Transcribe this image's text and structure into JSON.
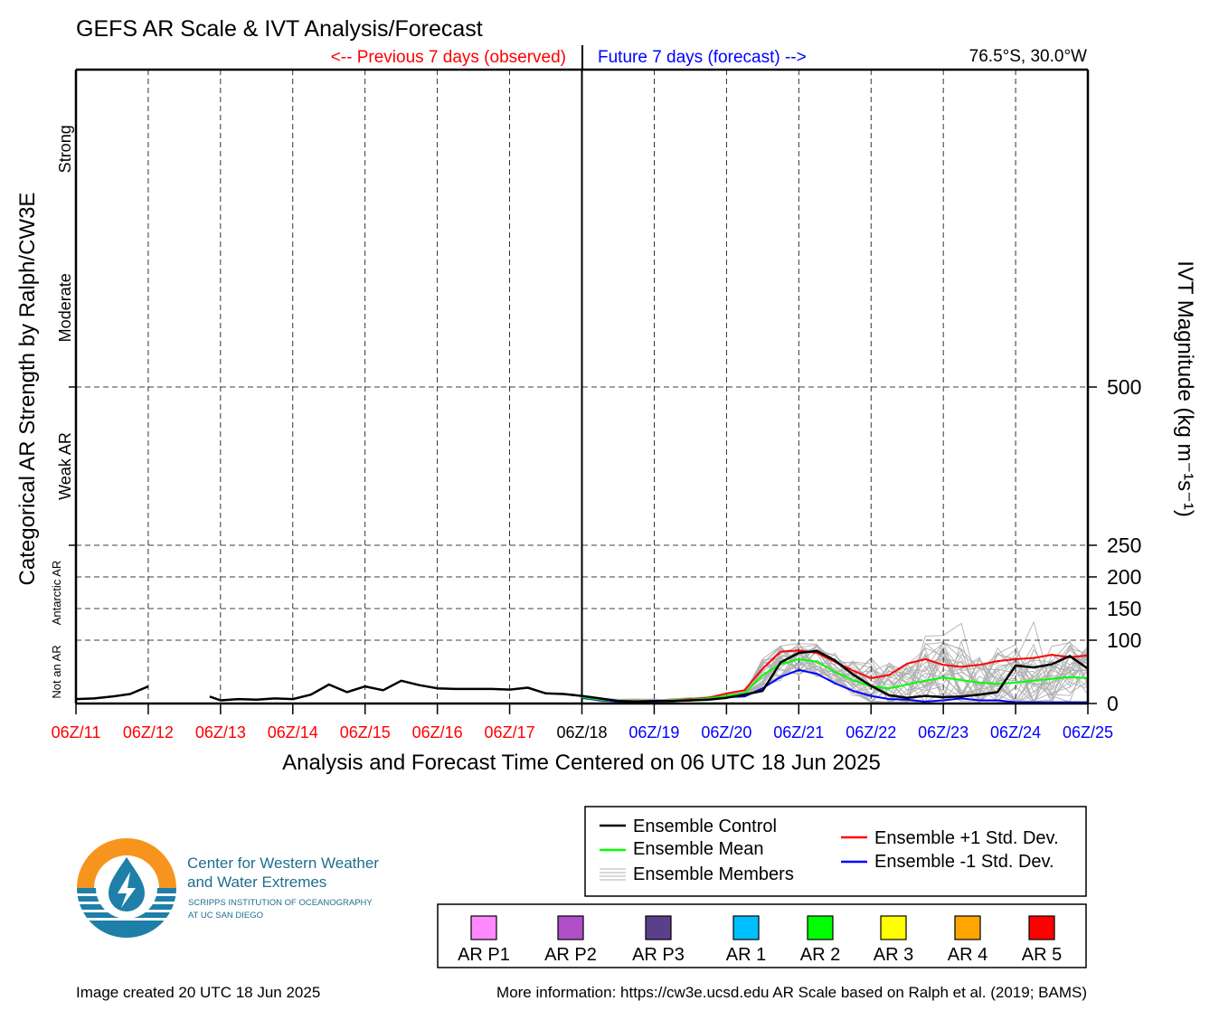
{
  "chart_data": {
    "type": "line",
    "title": "GEFS AR Scale & IVT Analysis/Forecast",
    "previous_label": "<-- Previous 7 days (observed)",
    "future_label": "Future 7 days (forecast) -->",
    "location": "76.5°S, 30.0°W",
    "xlabel": "Analysis and Forecast Time Centered on 06 UTC 18 Jun 2025",
    "ylabel_left": "Categorical AR Strength by Ralph/CW3E",
    "ylabel_right": "IVT Magnitude (kg m⁻¹s⁻¹)",
    "x_ticks": [
      "06Z/11",
      "06Z/12",
      "06Z/13",
      "06Z/14",
      "06Z/15",
      "06Z/16",
      "06Z/17",
      "06Z/18",
      "06Z/19",
      "06Z/20",
      "06Z/21",
      "06Z/22",
      "06Z/23",
      "06Z/24",
      "06Z/25"
    ],
    "x_tick_colors": [
      "#ff0000",
      "#ff0000",
      "#ff0000",
      "#ff0000",
      "#ff0000",
      "#ff0000",
      "#ff0000",
      "#000000",
      "#0000ff",
      "#0000ff",
      "#0000ff",
      "#0000ff",
      "#0000ff",
      "#0000ff",
      "#0000ff"
    ],
    "x_range_days": [
      0,
      14
    ],
    "center_day": 7,
    "y_ticks": [
      0,
      100,
      150,
      200,
      250,
      500
    ],
    "y_axis_max": 1000,
    "y_scale_note": "piecewise: 0-250 compressed lower band, 250-500, 500-1000",
    "categories": [
      {
        "label": "Not an AR",
        "from": 0,
        "to": 100,
        "small": true
      },
      {
        "label": "Antarctic AR",
        "from": 100,
        "to": 250,
        "small": true
      },
      {
        "label": "Weak AR",
        "from": 250,
        "to": 500
      },
      {
        "label": "Moderate",
        "from": 500,
        "to": 750
      },
      {
        "label": "Strong",
        "from": 750,
        "to": 1000
      }
    ],
    "grid": true,
    "series": [
      {
        "name": "Ensemble Control",
        "color": "#000000",
        "segments": [
          {
            "x": [
              0,
              0.25,
              0.5,
              0.75,
              1
            ],
            "y": [
              7,
              8,
              11,
              15,
              27
            ]
          },
          {
            "x": [
              1.85,
              2,
              2.25,
              2.5,
              2.75,
              3,
              3.25,
              3.5,
              3.75,
              4,
              4.25,
              4.5,
              4.75,
              5,
              5.25,
              5.5,
              5.75,
              6,
              6.25,
              6.5,
              6.75,
              7,
              7.25,
              7.5,
              7.75,
              8,
              8.25,
              8.5,
              8.75,
              9,
              9.25,
              9.5,
              9.75,
              10,
              10.25,
              10.5,
              10.75,
              11,
              11.25,
              11.5,
              11.75,
              12,
              12.25,
              12.5,
              12.75,
              13,
              13.25,
              13.5,
              13.75,
              14
            ],
            "y": [
              11,
              5,
              7,
              6,
              8,
              7,
              14,
              30,
              18,
              27,
              21,
              36,
              29,
              24,
              23,
              23,
              23,
              22,
              25,
              16,
              15,
              12,
              8,
              4,
              3,
              4,
              4,
              5,
              6,
              9,
              14,
              20,
              65,
              80,
              83,
              68,
              46,
              28,
              13,
              9,
              12,
              10,
              11,
              14,
              18,
              60,
              57,
              62,
              75,
              55
            ]
          }
        ]
      },
      {
        "name": "Ensemble Mean",
        "color": "#00ff00",
        "x": [
          7,
          7.25,
          7.5,
          7.75,
          8,
          8.25,
          8.5,
          8.75,
          9,
          9.25,
          9.5,
          9.75,
          10,
          10.25,
          10.5,
          10.75,
          11,
          11.25,
          11.5,
          11.75,
          12,
          12.25,
          12.5,
          12.75,
          13,
          13.25,
          13.5,
          13.75,
          14
        ],
        "y": [
          10,
          6,
          4,
          4,
          4,
          5,
          6,
          8,
          12,
          16,
          45,
          62,
          70,
          66,
          50,
          37,
          27,
          24,
          30,
          36,
          41,
          37,
          33,
          31,
          33,
          36,
          39,
          42,
          40
        ]
      },
      {
        "name": "Ensemble +1 Std. Dev.",
        "color": "#ff0000",
        "x": [
          7,
          7.25,
          7.5,
          7.75,
          8,
          8.25,
          8.5,
          8.75,
          9,
          9.25,
          9.5,
          9.75,
          10,
          10.25,
          10.5,
          10.75,
          11,
          11.25,
          11.5,
          11.75,
          12,
          12.25,
          12.5,
          12.75,
          13,
          13.25,
          13.5,
          13.75,
          14
        ],
        "y": [
          11,
          6,
          4,
          4,
          4,
          5,
          7,
          9,
          16,
          21,
          55,
          82,
          84,
          80,
          66,
          52,
          40,
          45,
          63,
          70,
          61,
          58,
          61,
          67,
          70,
          72,
          77,
          73,
          76
        ]
      },
      {
        "name": "Ensemble -1 Std. Dev.",
        "color": "#0000ff",
        "x": [
          7,
          7.25,
          7.5,
          7.75,
          8,
          8.25,
          8.5,
          8.75,
          9,
          9.25,
          9.5,
          9.75,
          10,
          10.25,
          10.5,
          10.75,
          11,
          11.25,
          11.5,
          11.75,
          12,
          12.25,
          12.5,
          12.75,
          13,
          13.25,
          13.5,
          13.75,
          14
        ],
        "y": [
          9,
          5,
          3,
          3,
          3,
          4,
          5,
          7,
          10,
          11,
          24,
          42,
          53,
          47,
          32,
          20,
          12,
          7,
          6,
          3,
          5,
          8,
          5,
          5,
          2,
          2,
          2,
          2,
          2
        ]
      }
    ],
    "members_label": "Ensemble Members",
    "members_color": "#b0b0b0"
  },
  "legend": {
    "items": [
      {
        "label": "Ensemble Control",
        "color": "#000000"
      },
      {
        "label": "Ensemble Mean",
        "color": "#00ff00"
      },
      {
        "label": "Ensemble Members",
        "color": "#b0b0b0"
      },
      {
        "label": "Ensemble +1 Std. Dev.",
        "color": "#ff0000"
      },
      {
        "label": "Ensemble -1 Std. Dev.",
        "color": "#0000ff"
      }
    ]
  },
  "ar_scale": [
    {
      "label": "AR P1",
      "color": "#ff88ff"
    },
    {
      "label": "AR P2",
      "color": "#b04fc8"
    },
    {
      "label": "AR P3",
      "color": "#5a3f8a"
    },
    {
      "label": "AR 1",
      "color": "#00bfff"
    },
    {
      "label": "AR 2",
      "color": "#00ff00"
    },
    {
      "label": "AR 3",
      "color": "#ffff00"
    },
    {
      "label": "AR 4",
      "color": "#ffa500"
    },
    {
      "label": "AR 5",
      "color": "#ff0000"
    }
  ],
  "logo": {
    "name_line1": "Center for Western Weather",
    "name_line2": "and Water Extremes",
    "sub_line1": "SCRIPPS INSTITUTION OF OCEANOGRAPHY",
    "sub_line2": "AT UC SAN DIEGO",
    "orange": "#f7941d",
    "blue": "#1e7fa8"
  },
  "footer": {
    "created": "Image created 20 UTC 18 Jun 2025",
    "info": "More information: https://cw3e.ucsd.edu AR Scale based on Ralph et al. (2019; BAMS)"
  }
}
